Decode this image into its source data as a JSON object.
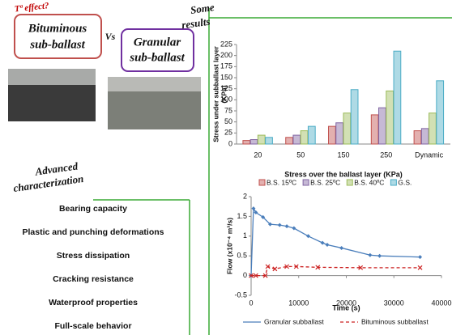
{
  "slide": {
    "effect": "Tª effect?",
    "bituminous": [
      "Bituminous",
      "sub-ballast"
    ],
    "versus": "Vs",
    "granular": [
      "Granular",
      "sub-ballast"
    ],
    "results": [
      "Some",
      "results"
    ],
    "advanced": [
      "Advanced",
      "characterization"
    ],
    "items": [
      "Bearing capacity",
      "Plastic and punching deformations",
      "Stress dissipation",
      "Cracking resistance",
      "Waterproof properties",
      "Full-scale behavior"
    ]
  },
  "chart_data": [
    {
      "type": "bar",
      "categories": [
        "20",
        "50",
        "150",
        "250",
        "Dynamic"
      ],
      "y_label": [
        "Stress under subballast layer",
        "(KPa)"
      ],
      "x_label": "Stress over the ballast layer (KPa)",
      "ylim": [
        0,
        225
      ],
      "yticks": [
        0,
        25,
        50,
        75,
        100,
        125,
        150,
        175,
        200,
        225
      ],
      "series": [
        {
          "name": "B.S. 15ºC",
          "color": "#c0504d",
          "values": [
            8,
            15,
            40,
            66,
            30
          ]
        },
        {
          "name": "B.S. 25ºC",
          "color": "#8064a2",
          "values": [
            10,
            20,
            48,
            82,
            35
          ]
        },
        {
          "name": "B.S. 40ºC",
          "color": "#9bbb59",
          "values": [
            20,
            30,
            70,
            120,
            70
          ]
        },
        {
          "name": "G.S.",
          "color": "#4bacc6",
          "values": [
            15,
            40,
            123,
            210,
            143
          ]
        }
      ]
    },
    {
      "type": "line",
      "y_label": "Flow (x10⁻⁴ m³/s)",
      "x_label": "Time (s)",
      "xlim": [
        0,
        40000
      ],
      "xticks": [
        0,
        10000,
        20000,
        30000,
        40000
      ],
      "ylim": [
        -0.5,
        2
      ],
      "yticks": [
        -0.5,
        0,
        0.5,
        1,
        1.5,
        2
      ],
      "series": [
        {
          "name": "Granular subballast",
          "color": "#4a7ebb",
          "x": [
            0,
            500,
            1000,
            2500,
            4000,
            6000,
            7500,
            9000,
            12000,
            15000,
            16000,
            19000,
            25000,
            27000,
            35500
          ],
          "values": [
            0,
            1.7,
            1.6,
            1.48,
            1.3,
            1.28,
            1.25,
            1.2,
            1.0,
            0.83,
            0.78,
            0.7,
            0.52,
            0.5,
            0.47
          ]
        },
        {
          "name": "Bituminous subballast",
          "color": "#cc2222",
          "x": [
            0,
            1000,
            3000,
            3500,
            5000,
            7500,
            9500,
            14000,
            23000,
            35500
          ],
          "values": [
            0,
            0,
            0,
            0.23,
            0.17,
            0.23,
            0.23,
            0.21,
            0.2,
            0.2
          ]
        }
      ]
    }
  ]
}
